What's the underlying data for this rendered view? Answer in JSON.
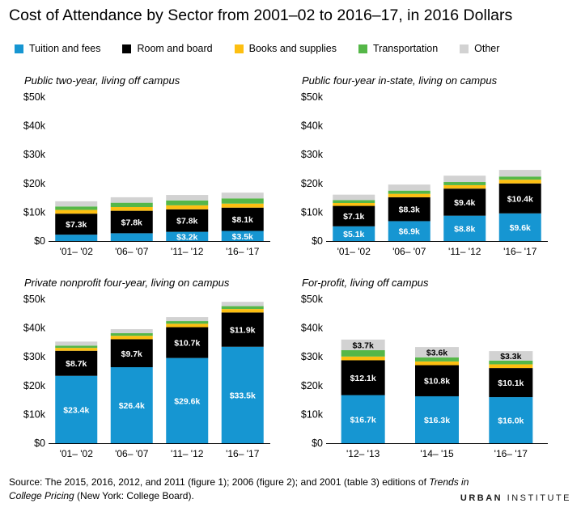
{
  "title": "Cost of Attendance by Sector from 2001–02 to 2016–17, in 2016 Dollars",
  "legend": [
    {
      "label": "Tuition and fees",
      "color": "#1696d2"
    },
    {
      "label": "Room and board",
      "color": "#000000"
    },
    {
      "label": "Books and supplies",
      "color": "#fdbf11"
    },
    {
      "label": "Transportation",
      "color": "#55b748"
    },
    {
      "label": "Other",
      "color": "#d2d2d2"
    }
  ],
  "chart_data": [
    {
      "type": "bar",
      "stacked": true,
      "title": "Public two-year, living off campus",
      "categories": [
        "'01– '02",
        "'06– '07",
        "'11– '12",
        "'16– '17"
      ],
      "ylim": [
        0,
        50000
      ],
      "yticks": [
        "$0",
        "$10k",
        "$20k",
        "$30k",
        "$40k",
        "$50k"
      ],
      "series": [
        {
          "name": "Tuition and fees",
          "values": [
            2200,
            2700,
            3200,
            3500
          ],
          "labels": [
            "",
            "",
            "$3.2k",
            "$3.5k"
          ]
        },
        {
          "name": "Room and board",
          "values": [
            7300,
            7800,
            7800,
            8100
          ],
          "labels": [
            "$7.3k",
            "$7.8k",
            "$7.8k",
            "$8.1k"
          ]
        },
        {
          "name": "Books and supplies",
          "values": [
            1300,
            1300,
            1400,
            1400
          ],
          "labels": [
            "",
            "",
            "",
            ""
          ]
        },
        {
          "name": "Transportation",
          "values": [
            1200,
            1500,
            1700,
            1800
          ],
          "labels": [
            "",
            "",
            "",
            ""
          ]
        },
        {
          "name": "Other",
          "values": [
            1800,
            1900,
            1900,
            2000
          ],
          "labels": [
            "",
            "",
            "",
            ""
          ]
        }
      ]
    },
    {
      "type": "bar",
      "stacked": true,
      "title": "Public four-year in-state, living on campus",
      "categories": [
        "'01– '02",
        "'06– '07",
        "'11– '12",
        "'16– '17"
      ],
      "ylim": [
        0,
        50000
      ],
      "yticks": [
        "$0",
        "$10k",
        "$20k",
        "$30k",
        "$40k",
        "$50k"
      ],
      "series": [
        {
          "name": "Tuition and fees",
          "values": [
            5100,
            6900,
            8800,
            9600
          ],
          "labels": [
            "$5.1k",
            "$6.9k",
            "$8.8k",
            "$9.6k"
          ]
        },
        {
          "name": "Room and board",
          "values": [
            7100,
            8300,
            9400,
            10400
          ],
          "labels": [
            "$7.1k",
            "$8.3k",
            "$9.4k",
            "$10.4k"
          ]
        },
        {
          "name": "Books and supplies",
          "values": [
            1000,
            1200,
            1200,
            1300
          ],
          "labels": [
            "",
            "",
            "",
            ""
          ]
        },
        {
          "name": "Transportation",
          "values": [
            1000,
            1100,
            1100,
            1100
          ],
          "labels": [
            "",
            "",
            "",
            ""
          ]
        },
        {
          "name": "Other",
          "values": [
            1900,
            2100,
            2200,
            2300
          ],
          "labels": [
            "",
            "",
            "",
            ""
          ]
        }
      ]
    },
    {
      "type": "bar",
      "stacked": true,
      "title": "Private nonprofit four-year, living on campus",
      "categories": [
        "'01– '02",
        "'06– '07",
        "'11– '12",
        "'16– '17"
      ],
      "ylim": [
        0,
        50000
      ],
      "yticks": [
        "$0",
        "$10k",
        "$20k",
        "$30k",
        "$40k",
        "$50k"
      ],
      "series": [
        {
          "name": "Tuition and fees",
          "values": [
            23400,
            26400,
            29600,
            33500
          ],
          "labels": [
            "$23.4k",
            "$26.4k",
            "$29.6k",
            "$33.5k"
          ]
        },
        {
          "name": "Room and board",
          "values": [
            8700,
            9700,
            10700,
            11900
          ],
          "labels": [
            "$8.7k",
            "$9.7k",
            "$10.7k",
            "$11.9k"
          ]
        },
        {
          "name": "Books and supplies",
          "values": [
            1000,
            1200,
            1200,
            1200
          ],
          "labels": [
            "",
            "",
            "",
            ""
          ]
        },
        {
          "name": "Transportation",
          "values": [
            800,
            900,
            900,
            1000
          ],
          "labels": [
            "",
            "",
            "",
            ""
          ]
        },
        {
          "name": "Other",
          "values": [
            1400,
            1400,
            1400,
            1500
          ],
          "labels": [
            "",
            "",
            "",
            ""
          ]
        }
      ]
    },
    {
      "type": "bar",
      "stacked": true,
      "title": "For-profit, living off campus",
      "categories": [
        "'12– '13",
        "'14– '15",
        "'16– '17"
      ],
      "ylim": [
        0,
        50000
      ],
      "yticks": [
        "$0",
        "$10k",
        "$20k",
        "$30k",
        "$40k",
        "$50k"
      ],
      "series": [
        {
          "name": "Tuition and fees",
          "values": [
            16700,
            16300,
            16000
          ],
          "labels": [
            "$16.7k",
            "$16.3k",
            "$16.0k"
          ]
        },
        {
          "name": "Room and board",
          "values": [
            12100,
            10800,
            10100
          ],
          "labels": [
            "$12.1k",
            "$10.8k",
            "$10.1k"
          ]
        },
        {
          "name": "Books and supplies",
          "values": [
            1300,
            1300,
            1300
          ],
          "labels": [
            "",
            "",
            ""
          ]
        },
        {
          "name": "Transportation",
          "values": [
            2200,
            1400,
            1300
          ],
          "labels": [
            "",
            "",
            ""
          ]
        },
        {
          "name": "Other",
          "values": [
            3700,
            3600,
            3300
          ],
          "labels": [
            "$3.7k",
            "$3.6k",
            "$3.3k"
          ]
        }
      ]
    }
  ],
  "source": {
    "prefix": "Source: The 2015, 2016, 2012, and 2011 (figure 1); 2006 (figure 2); and 2001 (table 3) editions of ",
    "italic": "Trends in College Pricing",
    "suffix": " (New York: College Board)."
  },
  "brand": {
    "part1": "URBAN",
    "part2": " INSTITUTE"
  }
}
